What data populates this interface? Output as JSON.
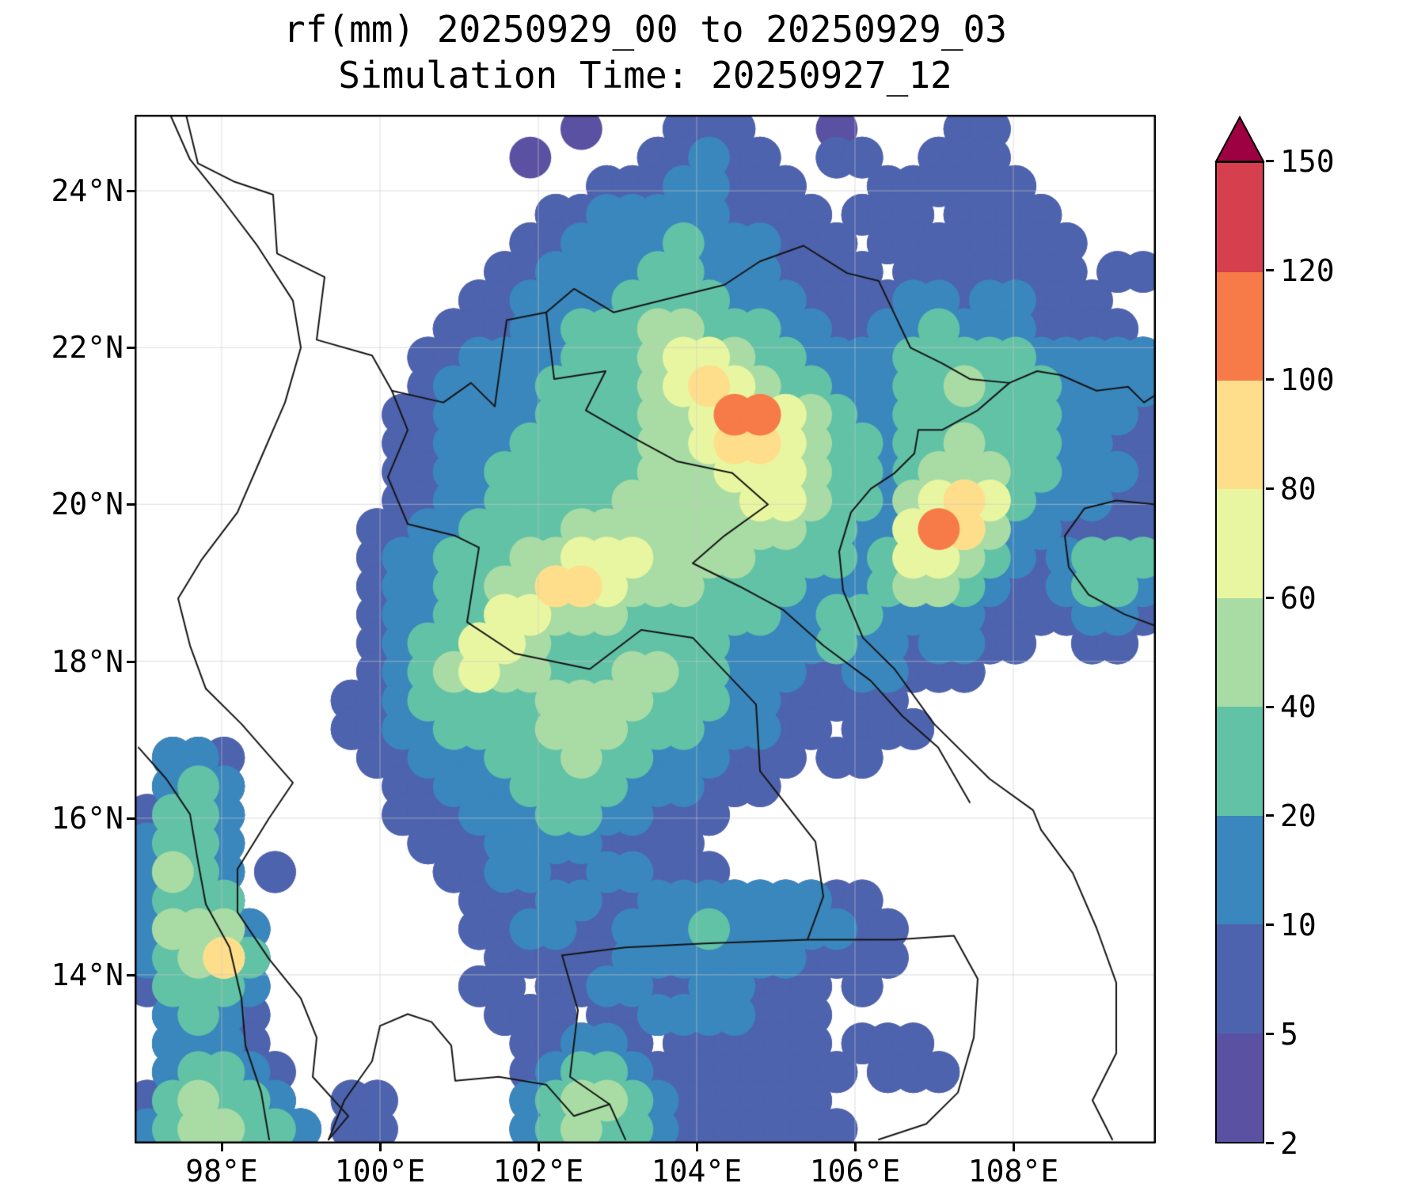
{
  "title": {
    "line1": "rf(mm) 20250929_00 to 20250929_03",
    "line2": "Simulation Time: 20250927_12"
  },
  "axes": {
    "x_tick_labels": [
      "98°E",
      "100°E",
      "102°E",
      "104°E",
      "106°E",
      "108°E"
    ],
    "y_tick_labels": [
      "24°N",
      "22°N",
      "20°N",
      "18°N",
      "16°N",
      "14°N"
    ],
    "x_tick_lons": [
      98,
      100,
      102,
      104,
      106,
      108
    ],
    "y_tick_lats": [
      24,
      22,
      20,
      18,
      16,
      14
    ],
    "grid": true
  },
  "colorbar": {
    "tick_labels": [
      "2",
      "5",
      "10",
      "20",
      "40",
      "60",
      "80",
      "100",
      "120",
      "150"
    ],
    "boundaries": [
      2,
      5,
      10,
      20,
      40,
      60,
      80,
      100,
      120,
      150
    ],
    "segment_colors": [
      "#5b51a3",
      "#4d63ad",
      "#3a87bd",
      "#62c2a6",
      "#a9dca4",
      "#e9f6a1",
      "#fede8b",
      "#f67b49",
      "#d6404e"
    ],
    "over_color": "#9e0142",
    "units": "mm"
  },
  "chart_data": {
    "type": "heatmap",
    "title": "rf(mm) 20250929_00 to 20250929_03",
    "subtitle": "Simulation Time: 20250927_12",
    "xlabel": "",
    "ylabel": "",
    "lon_range": [
      96.9,
      109.8
    ],
    "lat_range": [
      11.85,
      24.97
    ],
    "levels_mm": [
      2,
      5,
      10,
      20,
      40,
      60,
      80,
      100,
      120,
      150
    ],
    "grid_code_legend": {
      ".": 0,
      "1": 3,
      "2": 7,
      "3": 15,
      "4": 30,
      "5": 50,
      "6": 70,
      "7": 90,
      "8": 110,
      "9": 135,
      "A": 160
    },
    "grid_rows_top_to_bottom": [
      ".................1...222...1....22......",
      "...............1....22322..22..222......",
      "..................22233222...222222.....",
      "................22333332222.222.2222....",
      "...............2233334333222.22222222...",
      "..............223333443332222.2222222.22",
      ".............2233334444333222233233222..",
      "............222334445544433223343332222.",
      "...........22333344456654433334444433333",
      "...........23333444456765443334454443333",
      "..........223333444455688654334444443332",
      "..........223334444455677654434454443322",
      "..........223344444455566654434555443332",
      "..........223344444555556654435676433322",
      ".........2233444455555555544336875332222",
      ".........2334445566655554444346654323444",
      ".........2334455776555444433345543223443",
      ".........2334466555444444334433332222332",
      ".........23446654444444333343323322..22.",
      ".........234565544455443332233222.......",
      "........2234444455554443322222..........",
      "........2233444455544433322.222.........",
      ".332.....22333444544333222.22...........",
      ".343......223334444333222...............",
      "2443......2223334433222.................",
      "3443.......22233332222..................",
      "3543.2......22332233222.................",
      "3444.........2223322333333322...........",
      "35553........22332233343333322..........",
      "34574.........2222233333332222..........",
      "24443........22.22332233222.2...........",
      ".3432.........222.223333222.............",
      ".3332..........22332.222222.222.........",
      ".34432.........2344322222222.222........",
      "245443..22.....345543222222.............",
      "3455443.22.....3454432222222............"
    ],
    "map_borders": [
      [
        [
          97.55,
          24.97
        ],
        [
          97.7,
          24.35
        ],
        [
          98.15,
          24.12
        ],
        [
          98.65,
          23.95
        ],
        [
          98.7,
          23.2
        ],
        [
          99.3,
          22.9
        ],
        [
          99.2,
          22.1
        ],
        [
          99.9,
          21.9
        ],
        [
          100.15,
          21.45
        ],
        [
          100.8,
          21.3
        ],
        [
          101.15,
          21.55
        ],
        [
          101.45,
          21.25
        ],
        [
          101.6,
          22.35
        ],
        [
          102.1,
          22.45
        ],
        [
          102.45,
          22.75
        ],
        [
          102.95,
          22.45
        ],
        [
          103.55,
          22.6
        ],
        [
          104.35,
          22.8
        ],
        [
          104.8,
          23.1
        ],
        [
          105.35,
          23.3
        ],
        [
          105.9,
          22.95
        ],
        [
          106.3,
          22.85
        ],
        [
          106.7,
          22.0
        ],
        [
          107.1,
          21.8
        ],
        [
          107.45,
          21.6
        ],
        [
          107.95,
          21.55
        ]
      ],
      [
        [
          102.1,
          22.45
        ],
        [
          102.2,
          21.6
        ],
        [
          102.85,
          21.7
        ],
        [
          102.6,
          21.2
        ],
        [
          103.2,
          20.85
        ],
        [
          103.75,
          20.55
        ],
        [
          104.45,
          20.4
        ],
        [
          104.9,
          20.0
        ],
        [
          104.35,
          19.6
        ],
        [
          103.95,
          19.25
        ],
        [
          104.55,
          18.95
        ],
        [
          105.1,
          18.65
        ],
        [
          105.6,
          18.2
        ],
        [
          106.2,
          17.75
        ],
        [
          106.6,
          17.3
        ],
        [
          107.05,
          16.9
        ],
        [
          107.45,
          16.2
        ]
      ],
      [
        [
          100.1,
          20.35
        ],
        [
          100.35,
          19.75
        ],
        [
          100.95,
          19.6
        ],
        [
          101.25,
          19.45
        ],
        [
          101.1,
          18.5
        ],
        [
          101.7,
          18.1
        ],
        [
          102.65,
          17.9
        ],
        [
          103.3,
          18.4
        ],
        [
          103.95,
          18.3
        ],
        [
          104.75,
          17.45
        ],
        [
          104.8,
          16.6
        ],
        [
          105.5,
          15.7
        ],
        [
          105.6,
          15.0
        ],
        [
          105.4,
          14.45
        ],
        [
          106.0,
          14.45
        ],
        [
          106.5,
          14.45
        ],
        [
          107.25,
          14.5
        ],
        [
          107.55,
          13.95
        ],
        [
          107.5,
          13.2
        ],
        [
          107.3,
          12.5
        ],
        [
          106.9,
          12.1
        ],
        [
          106.3,
          11.9
        ]
      ],
      [
        [
          102.3,
          14.25
        ],
        [
          103.1,
          14.35
        ],
        [
          104.1,
          14.4
        ],
        [
          105.4,
          14.45
        ]
      ],
      [
        [
          102.3,
          14.25
        ],
        [
          102.5,
          13.55
        ],
        [
          102.4,
          12.7
        ],
        [
          102.9,
          12.35
        ],
        [
          103.1,
          11.9
        ]
      ],
      [
        [
          97.8,
          17.65
        ],
        [
          98.25,
          17.2
        ],
        [
          98.9,
          16.45
        ],
        [
          98.6,
          16.0
        ],
        [
          98.2,
          15.35
        ],
        [
          98.2,
          14.8
        ],
        [
          98.6,
          14.2
        ],
        [
          99.0,
          13.7
        ],
        [
          99.2,
          13.2
        ],
        [
          99.15,
          12.7
        ],
        [
          99.6,
          12.2
        ],
        [
          99.35,
          11.9
        ]
      ],
      [
        [
          96.95,
          16.9
        ],
        [
          97.3,
          16.5
        ],
        [
          97.6,
          16.05
        ],
        [
          97.7,
          15.45
        ],
        [
          97.8,
          14.9
        ],
        [
          98.1,
          14.35
        ],
        [
          98.25,
          13.7
        ],
        [
          98.3,
          13.1
        ],
        [
          98.5,
          12.5
        ],
        [
          98.6,
          11.9
        ]
      ],
      [
        [
          97.35,
          24.97
        ],
        [
          97.6,
          24.4
        ],
        [
          98.0,
          23.9
        ],
        [
          98.45,
          23.3
        ],
        [
          98.9,
          22.6
        ],
        [
          99.0,
          22.0
        ],
        [
          98.8,
          21.3
        ],
        [
          98.5,
          20.6
        ],
        [
          98.2,
          19.9
        ],
        [
          97.75,
          19.3
        ],
        [
          97.45,
          18.8
        ],
        [
          97.6,
          18.2
        ],
        [
          97.8,
          17.65
        ]
      ],
      [
        [
          107.95,
          21.55
        ],
        [
          107.55,
          21.2
        ],
        [
          107.1,
          20.95
        ],
        [
          106.8,
          20.95
        ],
        [
          106.75,
          20.65
        ],
        [
          106.5,
          20.4
        ],
        [
          106.2,
          20.2
        ],
        [
          105.95,
          19.9
        ],
        [
          105.8,
          19.4
        ],
        [
          105.85,
          18.9
        ],
        [
          106.1,
          18.3
        ],
        [
          106.5,
          17.9
        ],
        [
          107.0,
          17.2
        ],
        [
          107.7,
          16.5
        ],
        [
          108.25,
          16.1
        ],
        [
          108.35,
          15.85
        ],
        [
          108.75,
          15.3
        ],
        [
          109.05,
          14.6
        ],
        [
          109.3,
          13.9
        ],
        [
          109.3,
          13.0
        ],
        [
          109.0,
          12.4
        ],
        [
          109.25,
          11.9
        ]
      ],
      [
        [
          107.95,
          21.55
        ],
        [
          108.3,
          21.7
        ],
        [
          108.6,
          21.65
        ],
        [
          109.05,
          21.45
        ],
        [
          109.45,
          21.5
        ],
        [
          109.65,
          21.3
        ],
        [
          109.8,
          21.4
        ]
      ],
      [
        [
          109.8,
          20.0
        ],
        [
          109.3,
          20.05
        ],
        [
          108.9,
          19.95
        ],
        [
          108.65,
          19.6
        ],
        [
          108.7,
          19.2
        ],
        [
          108.95,
          18.85
        ],
        [
          109.4,
          18.6
        ],
        [
          109.8,
          18.45
        ]
      ],
      [
        [
          99.35,
          11.9
        ],
        [
          99.55,
          12.4
        ],
        [
          99.9,
          12.9
        ],
        [
          100.0,
          13.35
        ],
        [
          100.35,
          13.5
        ],
        [
          100.65,
          13.4
        ],
        [
          100.9,
          13.1
        ],
        [
          100.95,
          12.65
        ],
        [
          101.5,
          12.7
        ],
        [
          102.1,
          12.6
        ],
        [
          102.45,
          12.2
        ],
        [
          102.9,
          12.35
        ]
      ],
      [
        [
          100.15,
          21.45
        ],
        [
          100.35,
          20.95
        ],
        [
          100.1,
          20.35
        ]
      ]
    ]
  }
}
